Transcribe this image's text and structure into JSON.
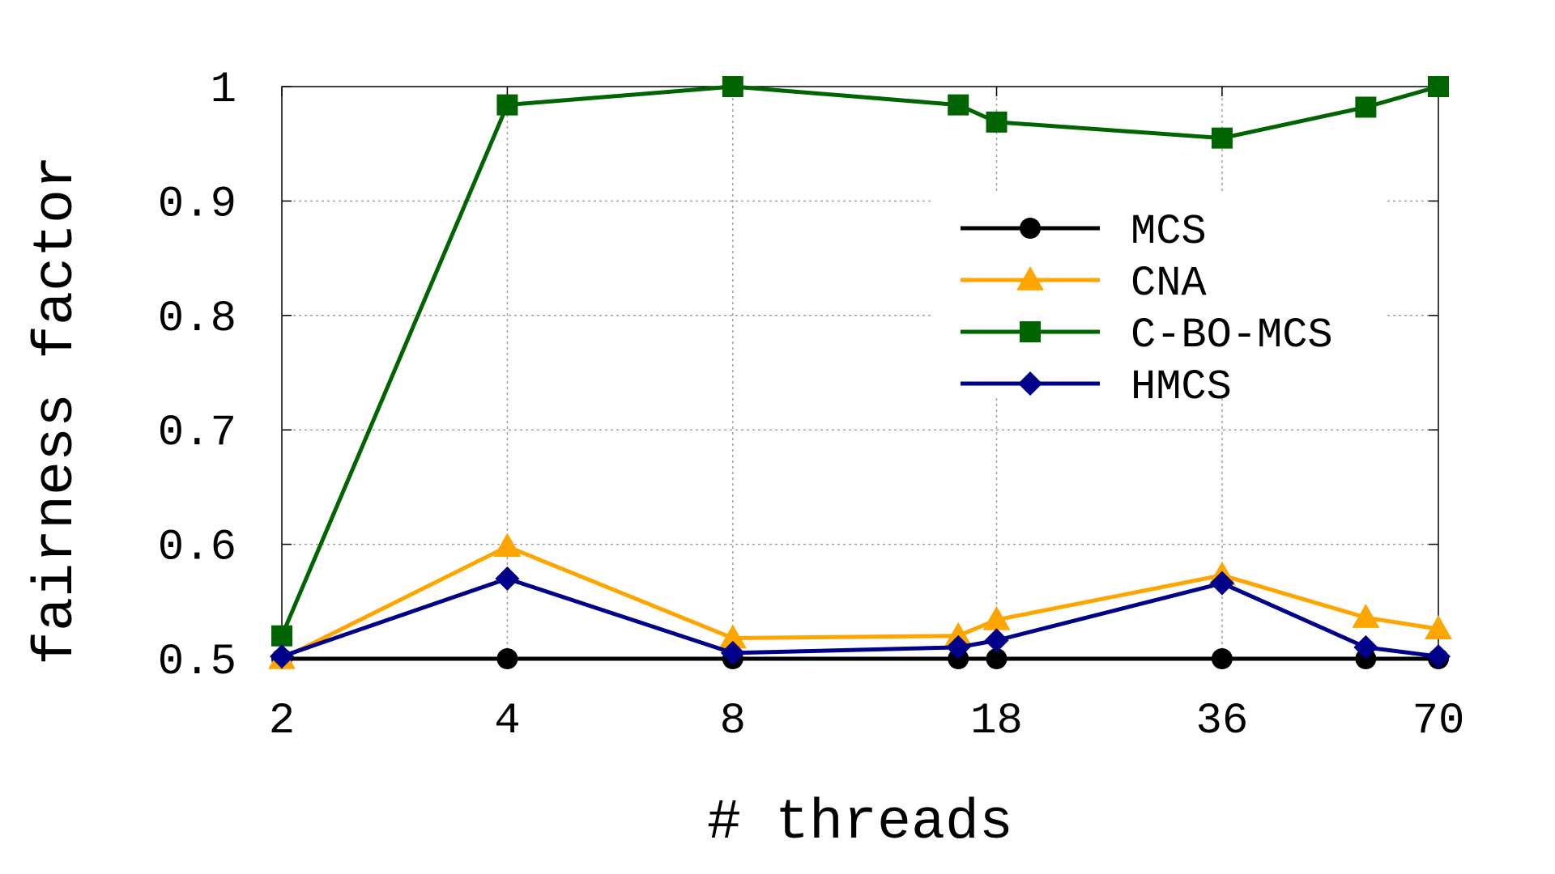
{
  "chart_data": {
    "type": "line",
    "xlabel": "# threads",
    "ylabel": "fairness factor",
    "x_scale": "log",
    "xlim": [
      2,
      70
    ],
    "ylim": [
      0.5,
      1
    ],
    "x_ticks": [
      2,
      4,
      8,
      18,
      36,
      70
    ],
    "y_ticks": [
      0.5,
      0.6,
      0.7,
      0.8,
      0.9,
      1
    ],
    "y_tick_labels": [
      "0.5",
      "0.6",
      "0.7",
      "0.8",
      "0.9",
      "1"
    ],
    "grid": true,
    "legend_position": "top-right",
    "series": [
      {
        "name": "MCS",
        "color": "#000000",
        "marker": "circle",
        "x": [
          2,
          4,
          8,
          16,
          18,
          36,
          56,
          70
        ],
        "values": [
          0.5,
          0.5,
          0.5,
          0.5,
          0.5,
          0.5,
          0.5,
          0.5
        ]
      },
      {
        "name": "CNA",
        "color": "#ffa500",
        "marker": "triangle",
        "x": [
          2,
          4,
          8,
          16,
          18,
          36,
          56,
          70
        ],
        "values": [
          0.5,
          0.598,
          0.518,
          0.52,
          0.534,
          0.573,
          0.536,
          0.526
        ]
      },
      {
        "name": "C-BO-MCS",
        "color": "#006400",
        "marker": "square",
        "x": [
          2,
          4,
          8,
          16,
          18,
          36,
          56,
          70
        ],
        "values": [
          0.52,
          0.984,
          1.0,
          0.984,
          0.969,
          0.955,
          0.982,
          1.0
        ]
      },
      {
        "name": "HMCS",
        "color": "#00008b",
        "marker": "diamond",
        "x": [
          2,
          4,
          8,
          16,
          18,
          36,
          56,
          70
        ],
        "values": [
          0.502,
          0.57,
          0.505,
          0.51,
          0.516,
          0.566,
          0.51,
          0.502
        ]
      }
    ]
  }
}
